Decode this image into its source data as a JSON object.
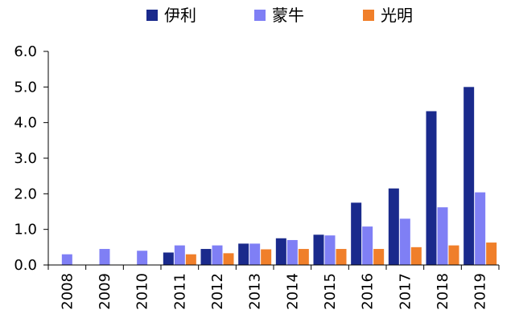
{
  "chart_data": {
    "type": "bar",
    "categories": [
      "2008",
      "2009",
      "2010",
      "2011",
      "2012",
      "2013",
      "2014",
      "2015",
      "2016",
      "2017",
      "2018",
      "2019"
    ],
    "series": [
      {
        "name": "伊利",
        "color": "#1a2a8c",
        "values": [
          0.0,
          0.0,
          0.0,
          0.35,
          0.45,
          0.6,
          0.75,
          0.85,
          1.75,
          2.15,
          4.32,
          5.0
        ]
      },
      {
        "name": "蒙牛",
        "color": "#7f7ff5",
        "values": [
          0.3,
          0.45,
          0.4,
          0.55,
          0.55,
          0.6,
          0.7,
          0.83,
          1.08,
          1.3,
          1.62,
          2.04
        ]
      },
      {
        "name": "光明",
        "color": "#f07f2a",
        "values": [
          0.0,
          0.0,
          0.0,
          0.3,
          0.33,
          0.44,
          0.45,
          0.45,
          0.45,
          0.5,
          0.55,
          0.63
        ]
      }
    ],
    "ylim": [
      0,
      6
    ],
    "yticks": [
      "0.0",
      "1.0",
      "2.0",
      "3.0",
      "4.0",
      "5.0",
      "6.0"
    ],
    "title": "",
    "xlabel": "",
    "ylabel": "",
    "legend_position": "top",
    "grid": false
  }
}
